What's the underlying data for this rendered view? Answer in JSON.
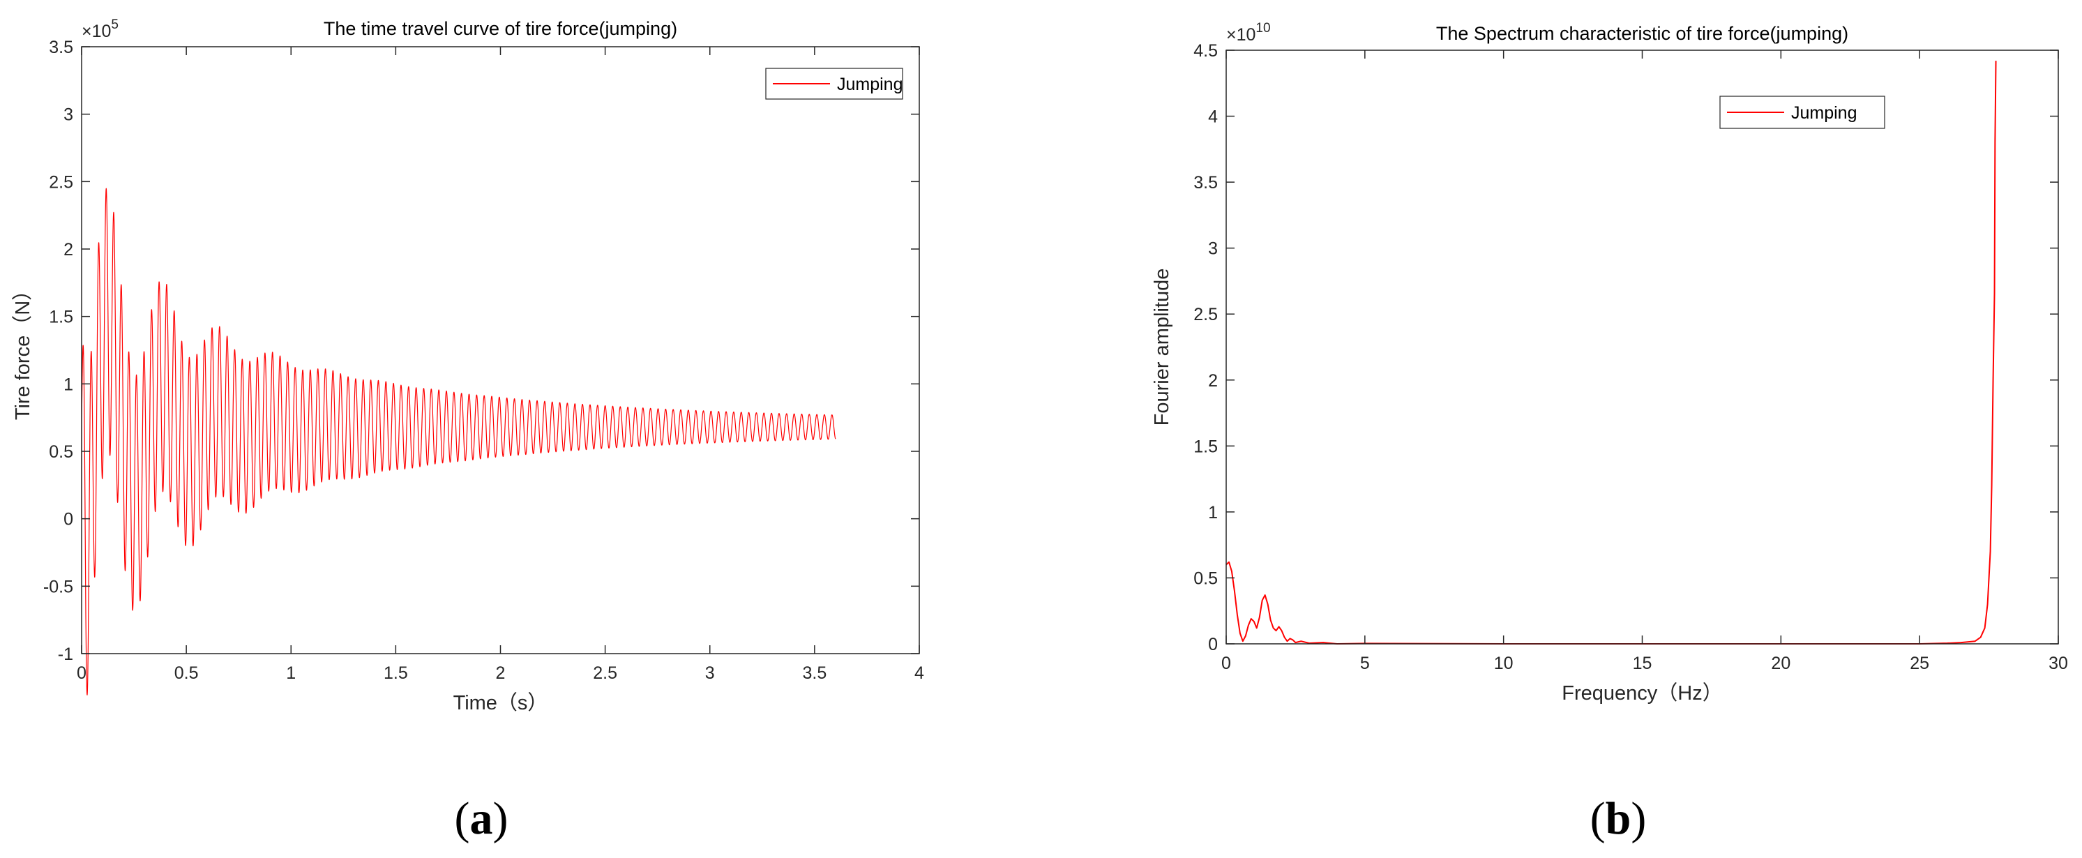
{
  "chart_data": [
    {
      "id": "a",
      "type": "line",
      "panel_label": "(a)",
      "title": "The time travel curve of tire force(jumping)",
      "xlabel": "Time（s）",
      "ylabel": "Tire force（N）",
      "y_exponent_base": "×10",
      "y_exponent_power": "5",
      "xlim": [
        0,
        4
      ],
      "ylim": [
        -1,
        3.5
      ],
      "xticks": [
        "0",
        "0.5",
        "1",
        "1.5",
        "2",
        "2.5",
        "3",
        "3.5",
        "4"
      ],
      "yticks": [
        "-1",
        "-0.5",
        "0",
        "0.5",
        "1",
        "1.5",
        "2",
        "2.5",
        "3",
        "3.5"
      ],
      "legend": "Jumping",
      "legend_position": "top-right",
      "color": "#ff0000",
      "series": [
        {
          "name": "Jumping",
          "model": "damped_oscillation",
          "x_range": [
            0,
            3.6
          ],
          "mean": 0.68,
          "fast_freq_hz": 27.7,
          "fast_amplitude_start": 1.1,
          "fast_amplitude_end": 0.05,
          "fast_decay_tau": 1.1,
          "slow_freq_hz": 3.8,
          "slow_amplitude_start": 1.25,
          "slow_decay_tau": 0.28
        }
      ]
    },
    {
      "id": "b",
      "type": "line",
      "panel_label": "(b)",
      "title": "The Spectrum characteristic of tire force(jumping)",
      "xlabel": "Frequency（Hz）",
      "ylabel": "Fourier amplitude",
      "y_exponent_base": "×10",
      "y_exponent_power": "10",
      "xlim": [
        0,
        30
      ],
      "ylim": [
        0,
        4.5
      ],
      "xticks": [
        "0",
        "5",
        "10",
        "15",
        "20",
        "25",
        "30"
      ],
      "yticks": [
        "0",
        "0.5",
        "1",
        "1.5",
        "2",
        "2.5",
        "3",
        "3.5",
        "4",
        "4.5"
      ],
      "legend": "Jumping",
      "legend_position": "top-right",
      "color": "#ff0000",
      "series": [
        {
          "name": "Jumping",
          "x": [
            0,
            0.1,
            0.2,
            0.3,
            0.4,
            0.5,
            0.6,
            0.7,
            0.8,
            0.9,
            1.0,
            1.1,
            1.2,
            1.3,
            1.4,
            1.5,
            1.6,
            1.7,
            1.8,
            1.9,
            2.0,
            2.1,
            2.2,
            2.3,
            2.4,
            2.5,
            2.7,
            3.0,
            3.5,
            4.0,
            5.0,
            10.0,
            15.0,
            20.0,
            25.0,
            26.0,
            26.5,
            27.0,
            27.2,
            27.35,
            27.45,
            27.55,
            27.6,
            27.65,
            27.7,
            27.72,
            27.75
          ],
          "y": [
            0.6,
            0.62,
            0.55,
            0.4,
            0.22,
            0.08,
            0.02,
            0.06,
            0.14,
            0.19,
            0.17,
            0.12,
            0.2,
            0.33,
            0.37,
            0.3,
            0.18,
            0.12,
            0.1,
            0.13,
            0.1,
            0.05,
            0.02,
            0.04,
            0.03,
            0.01,
            0.02,
            0.005,
            0.01,
            0.0,
            0.003,
            0.0,
            0.0,
            0.0,
            0.0,
            0.005,
            0.01,
            0.02,
            0.05,
            0.12,
            0.3,
            0.7,
            1.2,
            2.0,
            2.66,
            3.8,
            4.42
          ]
        }
      ]
    }
  ]
}
